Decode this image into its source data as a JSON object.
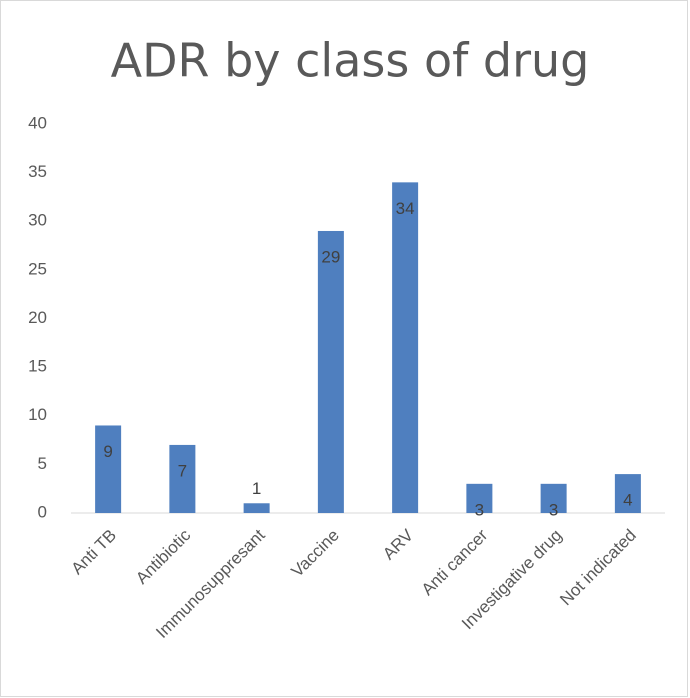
{
  "chart_data": {
    "type": "bar",
    "title": "ADR by class of drug",
    "categories": [
      "Anti TB",
      "Antibiotic",
      "Immunosuppresant",
      "Vaccine",
      "ARV",
      "Anti cancer",
      "Investigative drug",
      "Not indicated"
    ],
    "values": [
      9,
      7,
      1,
      29,
      34,
      3,
      3,
      4
    ],
    "color": "#4f7fbf",
    "ylim": [
      0,
      40
    ],
    "yticks": [
      0,
      5,
      10,
      15,
      20,
      25,
      30,
      35,
      40
    ],
    "grid": false
  }
}
